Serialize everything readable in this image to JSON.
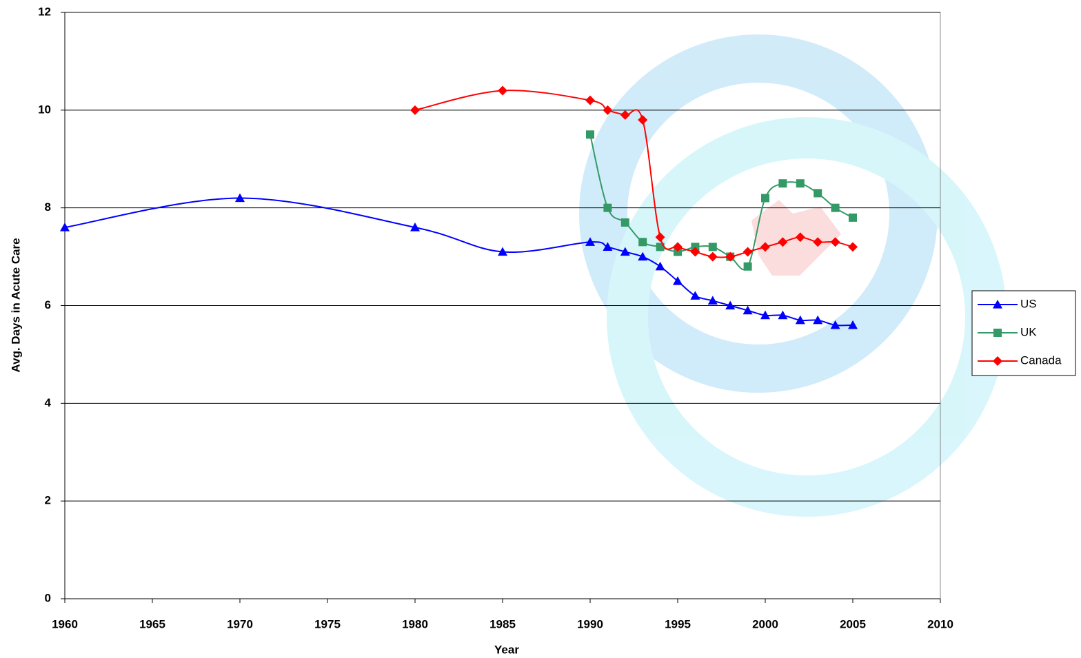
{
  "chart_data": {
    "type": "line",
    "x_label": "Year",
    "y_label": "Avg. Days in Acute Care",
    "x": [
      1960,
      1970,
      1980,
      1985,
      1990,
      1991,
      1992,
      1993,
      1994,
      1995,
      1996,
      1997,
      1998,
      1999,
      2000,
      2001,
      2002,
      2003,
      2004,
      2005
    ],
    "series": [
      {
        "name": "US",
        "color": "#0000ff",
        "marker": "triangle",
        "values": [
          7.6,
          8.2,
          7.6,
          7.1,
          7.3,
          7.2,
          7.1,
          7.0,
          6.8,
          6.5,
          6.2,
          6.1,
          6.0,
          5.9,
          5.8,
          5.8,
          5.7,
          5.7,
          5.6,
          5.6
        ]
      },
      {
        "name": "UK",
        "color": "#339966",
        "marker": "square",
        "values": [
          null,
          null,
          null,
          null,
          9.5,
          8.0,
          7.7,
          7.3,
          7.2,
          7.1,
          7.2,
          7.2,
          7.0,
          6.8,
          8.2,
          8.5,
          8.5,
          8.3,
          8.0,
          7.8
        ]
      },
      {
        "name": "Canada",
        "color": "#ff0000",
        "marker": "diamond",
        "values": [
          null,
          null,
          10.0,
          10.4,
          10.2,
          10.0,
          9.9,
          9.8,
          7.4,
          7.2,
          7.1,
          7.0,
          7.0,
          7.1,
          7.2,
          7.3,
          7.4,
          7.3,
          7.3,
          7.2
        ]
      }
    ],
    "xlim": [
      1960,
      2010
    ],
    "xticks": [
      1960,
      1965,
      1970,
      1975,
      1980,
      1985,
      1990,
      1995,
      2000,
      2005,
      2010
    ],
    "ylim": [
      0,
      12
    ],
    "yticks": [
      0,
      2,
      4,
      6,
      8,
      10,
      12
    ],
    "grid": true,
    "legend": "right",
    "smooth": true
  }
}
